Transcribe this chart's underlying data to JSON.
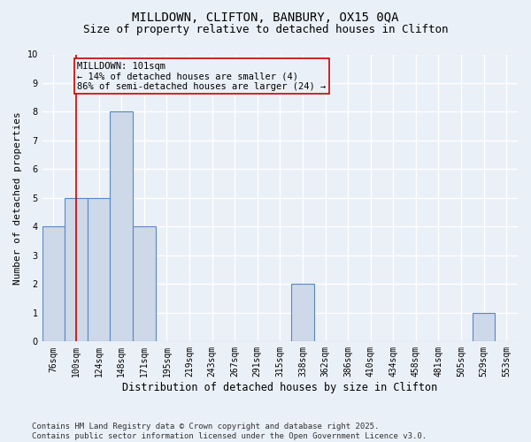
{
  "title": "MILLDOWN, CLIFTON, BANBURY, OX15 0QA",
  "subtitle": "Size of property relative to detached houses in Clifton",
  "xlabel": "Distribution of detached houses by size in Clifton",
  "ylabel": "Number of detached properties",
  "categories": [
    "76sqm",
    "100sqm",
    "124sqm",
    "148sqm",
    "171sqm",
    "195sqm",
    "219sqm",
    "243sqm",
    "267sqm",
    "291sqm",
    "315sqm",
    "338sqm",
    "362sqm",
    "386sqm",
    "410sqm",
    "434sqm",
    "458sqm",
    "481sqm",
    "505sqm",
    "529sqm",
    "553sqm"
  ],
  "values": [
    4,
    5,
    5,
    8,
    4,
    0,
    0,
    0,
    0,
    0,
    0,
    2,
    0,
    0,
    0,
    0,
    0,
    0,
    0,
    1,
    0
  ],
  "bar_color": "#cdd8e8",
  "bar_edge_color": "#5a87c5",
  "bar_linewidth": 0.8,
  "ylim": [
    0,
    10
  ],
  "yticks": [
    0,
    1,
    2,
    3,
    4,
    5,
    6,
    7,
    8,
    9,
    10
  ],
  "annotation_line1": "MILLDOWN: 101sqm",
  "annotation_line2": "← 14% of detached houses are smaller (4)",
  "annotation_line3": "86% of semi-detached houses are larger (24) →",
  "redline_x": 1.0,
  "redline_color": "#cc0000",
  "box_edge_color": "#cc0000",
  "background_color": "#eaf0f8",
  "grid_color": "#ffffff",
  "footnote": "Contains HM Land Registry data © Crown copyright and database right 2025.\nContains public sector information licensed under the Open Government Licence v3.0.",
  "title_fontsize": 10,
  "subtitle_fontsize": 9,
  "xlabel_fontsize": 8.5,
  "ylabel_fontsize": 8,
  "tick_fontsize": 7,
  "annotation_fontsize": 7.5,
  "footnote_fontsize": 6.5
}
